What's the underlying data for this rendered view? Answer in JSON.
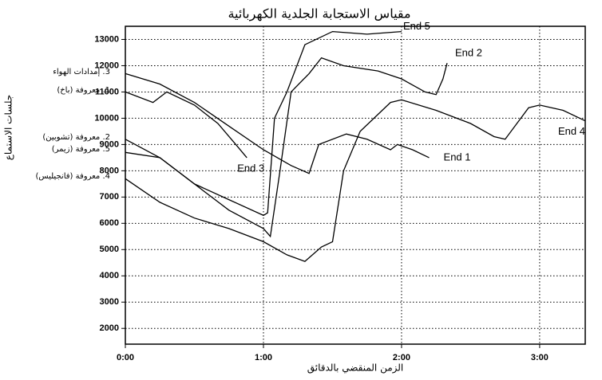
{
  "chart_data": {
    "type": "line",
    "title": "مقياس الاستجابة الجلدية الكهربائية",
    "x_label": "الزمن المنقضي بالدقائق",
    "y_label": "جلسات الاستماع",
    "xlim": [
      0,
      3.33
    ],
    "ylim": [
      1400,
      13500
    ],
    "xticks": [
      {
        "value": 0,
        "label": "0:00"
      },
      {
        "value": 1,
        "label": "1:00"
      },
      {
        "value": 2,
        "label": "2:00"
      },
      {
        "value": 3,
        "label": "3:00"
      }
    ],
    "yticks": [
      2000,
      3000,
      4000,
      5000,
      6000,
      7000,
      8000,
      9000,
      10000,
      11000,
      12000,
      13000
    ],
    "grid": true,
    "series": [
      {
        "name": "3. إمدادات الهواء",
        "end_label": "End 3",
        "color": "#000000",
        "x": [
          0,
          0.2,
          0.3,
          0.5,
          0.67,
          0.8,
          0.88
        ],
        "values": [
          11000,
          10600,
          11000,
          10500,
          9800,
          9000,
          8500
        ]
      },
      {
        "name": "1. معروفة (باخ)",
        "end_label": "End 1",
        "color": "#000000",
        "x": [
          0,
          0.25,
          0.5,
          0.75,
          1.0,
          1.2,
          1.33,
          1.4,
          1.6,
          1.75,
          1.92,
          1.97,
          2.08,
          2.2
        ],
        "values": [
          11700,
          11300,
          10600,
          9700,
          8800,
          8200,
          7900,
          9000,
          9400,
          9200,
          8800,
          9000,
          8800,
          8500
        ]
      },
      {
        "name": "2. معروفة (تشوبين)",
        "end_label": "End 2",
        "color": "#000000",
        "x": [
          0,
          0.25,
          0.5,
          0.75,
          1.0,
          1.05,
          1.12,
          1.2,
          1.33,
          1.42,
          1.58,
          1.83,
          2.0,
          2.17,
          2.25,
          2.3,
          2.33
        ],
        "values": [
          8700,
          8500,
          7500,
          6500,
          5800,
          5500,
          8000,
          11000,
          11700,
          12300,
          12000,
          11800,
          11500,
          11000,
          10900,
          11500,
          12100
        ]
      },
      {
        "name": "5. معروفة (زيمر)",
        "end_label": "End 5",
        "color": "#000000",
        "x": [
          0,
          0.25,
          0.5,
          0.75,
          1.0,
          1.03,
          1.08,
          1.17,
          1.3,
          1.5,
          1.75,
          2.0
        ],
        "values": [
          9200,
          8500,
          7500,
          6900,
          6300,
          6400,
          10000,
          11000,
          12800,
          13300,
          13200,
          13300
        ]
      },
      {
        "name": "4. معروفة (فانجيليس)",
        "end_label": "End 4",
        "color": "#000000",
        "x": [
          0,
          0.25,
          0.5,
          0.75,
          1.0,
          1.17,
          1.3,
          1.42,
          1.5,
          1.58,
          1.7,
          1.92,
          2.0,
          2.25,
          2.5,
          2.67,
          2.75,
          2.92,
          3.0,
          3.17,
          3.33
        ],
        "values": [
          7700,
          6800,
          6200,
          5800,
          5300,
          4800,
          4550,
          5100,
          5300,
          8000,
          9500,
          10600,
          10700,
          10300,
          9800,
          9300,
          9200,
          10400,
          10500,
          10300,
          9900
        ]
      }
    ]
  }
}
